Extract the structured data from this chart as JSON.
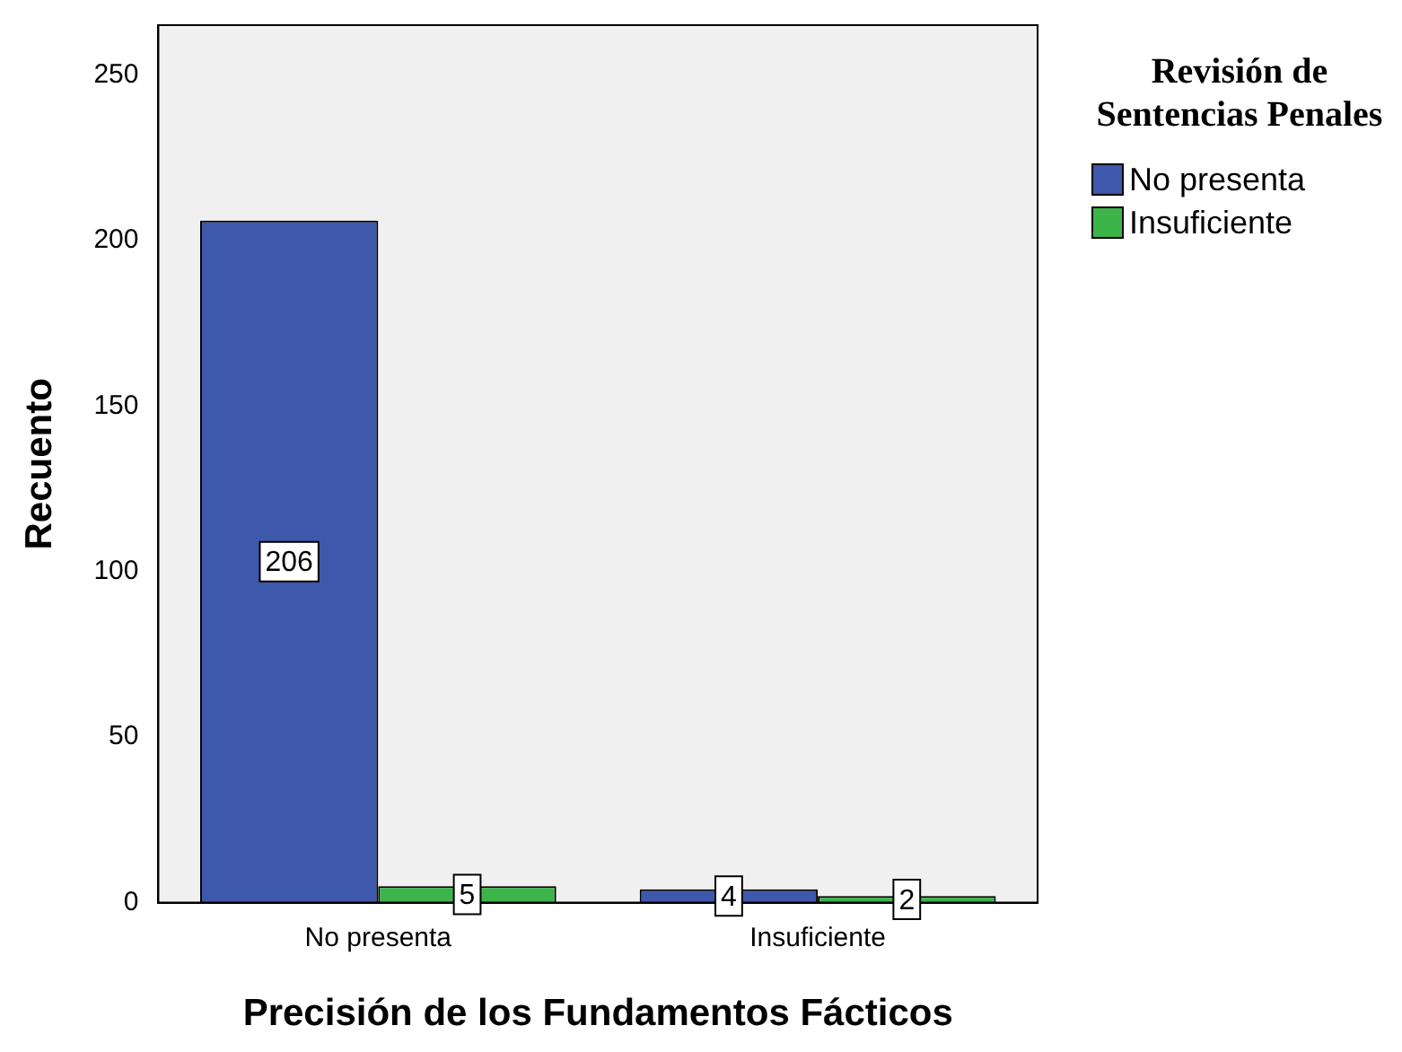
{
  "chart_data": {
    "type": "bar",
    "xlabel": "Precisión de los Fundamentos Fácticos",
    "ylabel": "Recuento",
    "legend_title": "Revisión de Sentencias Penales",
    "categories": [
      "No presenta",
      "Insuficiente"
    ],
    "series": [
      {
        "name": "No presenta",
        "color": "#3e58ac",
        "values": [
          206,
          4
        ]
      },
      {
        "name": "Insuficiente",
        "color": "#3cb44a",
        "values": [
          5,
          2
        ]
      }
    ],
    "ylim": [
      0,
      265
    ],
    "yticks": [
      0,
      50,
      100,
      150,
      200,
      250
    ],
    "grid": false,
    "legend": "right",
    "data_labels": true
  }
}
